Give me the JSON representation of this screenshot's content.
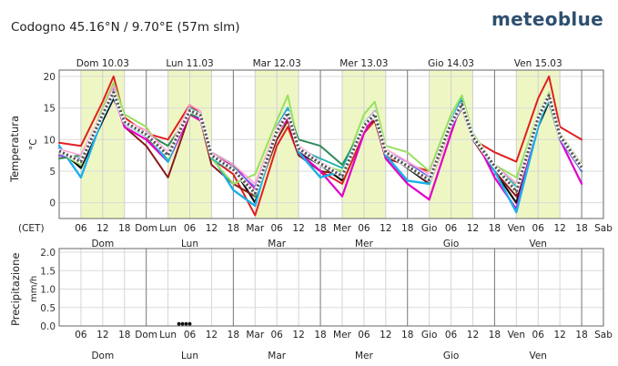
{
  "header": {
    "location_title": "Codogno  45.16°N / 9.70°E (57m slm)",
    "brand": "meteoblue"
  },
  "chart_data": [
    {
      "type": "line",
      "title": "",
      "ylabel": "Temperatura",
      "yunit": "°C",
      "xlabel": "(CET)",
      "ylim": [
        -2.5,
        21
      ],
      "yticks": [
        "0",
        "5",
        "10",
        "15",
        "20"
      ],
      "grid": true,
      "date_labels": [
        "Dom 10.03",
        "Lun 11.03",
        "Mar 12.03",
        "Mer 13.03",
        "Gio 14.03",
        "Ven 15.03"
      ],
      "x_tick_labels": [
        "06",
        "12",
        "18",
        "Dom",
        "Lun",
        "06",
        "12",
        "18",
        "Mar",
        "06",
        "12",
        "18",
        "Mer",
        "06",
        "12",
        "18",
        "Gio",
        "06",
        "12",
        "18",
        "Ven",
        "06",
        "12",
        "18",
        "Sab"
      ],
      "day_labels": [
        "Dom",
        "Lun",
        "Mar",
        "Mer",
        "Gio",
        "Ven"
      ],
      "daytime_highlight": "yellow bands 06–18 each day",
      "x_hours": [
        0,
        6,
        12,
        15,
        18,
        24,
        30,
        36,
        39,
        42,
        48,
        54,
        60,
        63,
        66,
        72,
        78,
        84,
        87,
        90,
        96,
        102,
        108,
        111,
        114,
        120,
        126,
        132,
        135,
        138,
        144
      ],
      "series": [
        {
          "color": "#111111",
          "width": 2.2,
          "values": [
            8.5,
            5.5,
            13,
            16.5,
            13,
            10.5,
            7,
            14,
            13.5,
            7.5,
            5.5,
            0,
            11,
            13.5,
            8,
            6,
            3.5,
            12,
            13,
            8,
            5.5,
            3,
            13,
            15,
            10,
            5,
            0,
            12,
            16,
            10,
            6
          ]
        },
        {
          "color": "#e02020",
          "width": 2.0,
          "values": [
            9.5,
            9,
            16,
            20,
            13.5,
            11,
            10,
            15.5,
            14,
            7,
            4.5,
            -2,
            9,
            12,
            7.5,
            5,
            3,
            11,
            13,
            7.5,
            6,
            5,
            12,
            15,
            10,
            8,
            6.5,
            16.5,
            20,
            12,
            10
          ]
        },
        {
          "color": "#8b1a1a",
          "width": 2.0,
          "values": [
            8,
            6,
            15,
            18,
            12,
            9,
            4,
            14,
            13,
            6,
            3,
            1,
            10,
            13,
            7.5,
            5,
            4.5,
            12,
            13,
            7,
            6,
            3,
            12,
            15,
            10,
            5,
            1,
            14,
            17,
            11,
            6
          ]
        },
        {
          "color": "#e000c8",
          "width": 2.2,
          "values": [
            7.5,
            6.5,
            14,
            17,
            12,
            10,
            6.5,
            14,
            13,
            7.5,
            6,
            2,
            11,
            13.5,
            8,
            5,
            1,
            11,
            14,
            7,
            3,
            0.5,
            11,
            16,
            11,
            4,
            -1,
            13,
            17,
            10,
            3
          ]
        },
        {
          "color": "#1ab0e8",
          "width": 2.4,
          "values": [
            9,
            4,
            13.5,
            17,
            12.5,
            11,
            6.5,
            15,
            14,
            7.5,
            2,
            -0.5,
            12,
            15,
            8,
            4,
            5,
            12.5,
            14.5,
            7.5,
            3.5,
            3,
            13,
            16.5,
            11,
            5,
            -1.5,
            12,
            17,
            10.5,
            5
          ]
        },
        {
          "color": "#98e060",
          "width": 2.0,
          "values": [
            8,
            6,
            15,
            19,
            14,
            12,
            7,
            15,
            14,
            7,
            3,
            4.5,
            13,
            17,
            9,
            6,
            5,
            14,
            16,
            9,
            8,
            5,
            14,
            17,
            11,
            6,
            4,
            14,
            17.5,
            11,
            6
          ]
        },
        {
          "color": "#2e8b57",
          "width": 2.0,
          "values": [
            7,
            7.5,
            14,
            17,
            13,
            11,
            9,
            14,
            13.5,
            8,
            6,
            1,
            12,
            14.5,
            10,
            9,
            6,
            12,
            14,
            8,
            6,
            4,
            13,
            16,
            10,
            6,
            3,
            13,
            16.5,
            10,
            5.5
          ]
        },
        {
          "color": "#20b2aa",
          "width": 1.8,
          "values": [
            8,
            6.5,
            14,
            17.5,
            12.5,
            10.5,
            8,
            15,
            14,
            7,
            5,
            1.5,
            11,
            14,
            8.5,
            7,
            5.5,
            12,
            14,
            8,
            6,
            3.5,
            12.5,
            15.5,
            10,
            6,
            2.5,
            13,
            16,
            10,
            5
          ]
        },
        {
          "color": "#7b68ee",
          "width": 1.8,
          "values": [
            7.5,
            7,
            14.5,
            18,
            12.5,
            11,
            7.5,
            14.5,
            13.5,
            7.5,
            5.5,
            2.5,
            11.5,
            14,
            9,
            6.5,
            4,
            12,
            14,
            8,
            6.5,
            4,
            12,
            15,
            10,
            6,
            2,
            13,
            16.5,
            10,
            5
          ]
        },
        {
          "color": "#ffa0d2",
          "width": 1.6,
          "values": [
            8.5,
            7.5,
            14.5,
            18.5,
            13,
            11.5,
            8,
            15.5,
            14.5,
            8,
            6,
            3,
            12,
            14.5,
            9,
            6.5,
            4.5,
            12.5,
            14.5,
            8.5,
            6.5,
            4.5,
            13,
            15.5,
            10.5,
            6,
            3,
            13.5,
            17,
            10.5,
            5.5
          ]
        },
        {
          "color": "#555555",
          "width": 3.2,
          "dotted": true,
          "values": [
            8.2,
            6.5,
            14,
            17.5,
            12.8,
            10.8,
            7.5,
            14.6,
            13.8,
            7.5,
            5.2,
            1.5,
            11.3,
            14.2,
            8.6,
            6.2,
            4.2,
            12.2,
            14,
            8,
            5.8,
            3.6,
            12.6,
            15.6,
            10.4,
            5.8,
            1.8,
            13.4,
            17,
            10.6,
            5.6
          ]
        }
      ]
    },
    {
      "type": "scatter",
      "ylabel": "Precipitazione",
      "yunit": "mm/h",
      "ylim": [
        0,
        2.0
      ],
      "yticks": [
        "0.0",
        "0.5",
        "1.0",
        "1.5",
        "2.0"
      ],
      "grid": true,
      "day_labels": [
        "Dom",
        "Lun",
        "Mar",
        "Mer",
        "Gio",
        "Ven"
      ],
      "x_tick_labels": [
        "06",
        "12",
        "18",
        "Dom",
        "Lun",
        "06",
        "12",
        "18",
        "Mar",
        "06",
        "12",
        "18",
        "Mer",
        "06",
        "12",
        "18",
        "Gio",
        "06",
        "12",
        "18",
        "Ven",
        "06",
        "12",
        "18",
        "Sab"
      ],
      "points": [
        {
          "x_hour": 33,
          "value": 0.02
        },
        {
          "x_hour": 34,
          "value": 0.02
        },
        {
          "x_hour": 35,
          "value": 0.02
        },
        {
          "x_hour": 36,
          "value": 0.02
        }
      ]
    }
  ]
}
